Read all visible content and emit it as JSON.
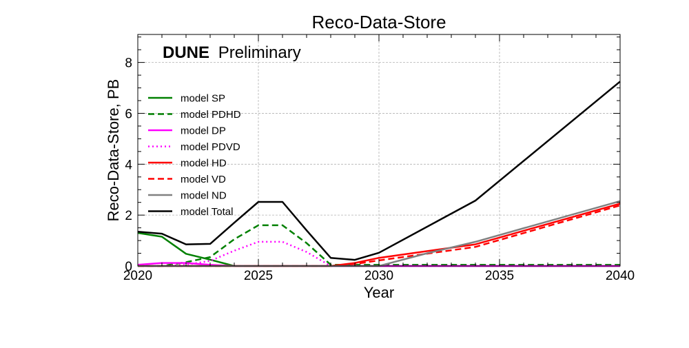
{
  "chart_data": {
    "type": "line",
    "title": "Reco-Data-Store",
    "watermark_bold": "DUNE",
    "watermark_text": "Preliminary",
    "xlabel": "Year",
    "ylabel": "Reco-Data-Store, PB",
    "xlim": [
      2020,
      2040
    ],
    "ylim": [
      0,
      9.1
    ],
    "xticks": [
      2020,
      2025,
      2030,
      2035,
      2040
    ],
    "yticks": [
      0,
      2,
      4,
      6,
      8
    ],
    "grid": true,
    "legend_position": "upper-left",
    "series": [
      {
        "name": "model SP",
        "color": "#008000",
        "dash": "solid",
        "x": [
          2020,
          2021,
          2022,
          2023,
          2024,
          2040
        ],
        "y": [
          1.3,
          1.15,
          0.48,
          0.25,
          0.0,
          0.0
        ]
      },
      {
        "name": "model PDHD",
        "color": "#008000",
        "dash": "dashed",
        "x": [
          2020,
          2021,
          2022,
          2023,
          2024,
          2025,
          2026,
          2027,
          2028,
          2040
        ],
        "y": [
          0.0,
          0.0,
          0.15,
          0.35,
          1.05,
          1.6,
          1.6,
          0.9,
          0.05,
          0.05
        ]
      },
      {
        "name": "model DP",
        "color": "#ff00ff",
        "dash": "solid",
        "x": [
          2020,
          2021,
          2022,
          2023,
          2024,
          2040
        ],
        "y": [
          0.05,
          0.12,
          0.12,
          0.05,
          0.0,
          0.0
        ]
      },
      {
        "name": "model PDVD",
        "color": "#ff00ff",
        "dash": "dotted",
        "x": [
          2020,
          2021,
          2022,
          2023,
          2024,
          2025,
          2026,
          2027,
          2028,
          2040
        ],
        "y": [
          0.0,
          0.0,
          0.05,
          0.2,
          0.6,
          0.95,
          0.95,
          0.55,
          0.0,
          0.0
        ]
      },
      {
        "name": "model HD",
        "color": "#ff0000",
        "dash": "solid",
        "x": [
          2020,
          2028,
          2029,
          2030,
          2034,
          2040
        ],
        "y": [
          0.0,
          0.0,
          0.12,
          0.32,
          0.85,
          2.45
        ]
      },
      {
        "name": "model VD",
        "color": "#ff0000",
        "dash": "dashed",
        "x": [
          2020,
          2028,
          2029,
          2030,
          2034,
          2040
        ],
        "y": [
          0.0,
          0.0,
          0.08,
          0.22,
          0.75,
          2.38
        ]
      },
      {
        "name": "model ND",
        "color": "#808080",
        "dash": "solid",
        "x": [
          2020,
          2030,
          2032,
          2034,
          2040
        ],
        "y": [
          0.0,
          0.0,
          0.5,
          0.95,
          2.55
        ]
      },
      {
        "name": "model Total",
        "color": "#000000",
        "dash": "solid",
        "x": [
          2020,
          2021,
          2022,
          2023,
          2024,
          2025,
          2026,
          2027,
          2028,
          2029,
          2030,
          2034,
          2040
        ],
        "y": [
          1.35,
          1.27,
          0.85,
          0.87,
          1.7,
          2.52,
          2.52,
          1.4,
          0.32,
          0.24,
          0.52,
          2.57,
          7.25
        ]
      }
    ]
  }
}
